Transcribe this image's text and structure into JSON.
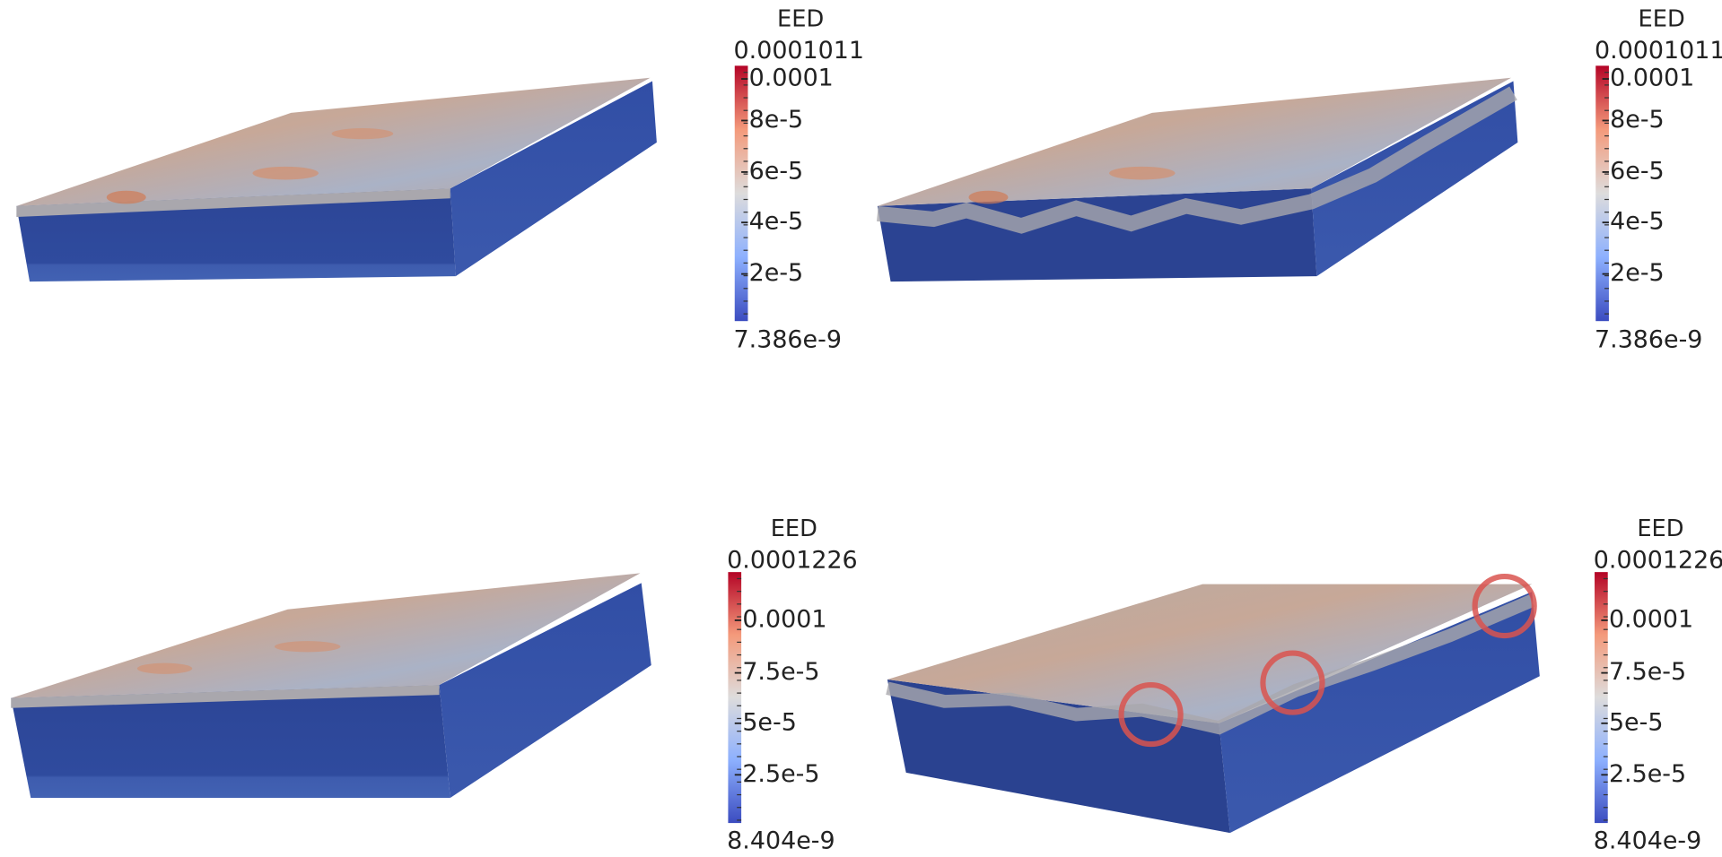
{
  "panels": [
    {
      "colorbar": {
        "title": "EED",
        "max": "0.0001011",
        "ticks": [
          "0.0001",
          "8e-5",
          "6e-5",
          "4e-5",
          "2e-5"
        ],
        "min": "7.386e-9"
      }
    },
    {
      "colorbar": {
        "title": "EED",
        "max": "0.0001011",
        "ticks": [
          "0.0001",
          "8e-5",
          "6e-5",
          "4e-5",
          "2e-5"
        ],
        "min": "7.386e-9"
      }
    },
    {
      "colorbar": {
        "title": "EED",
        "max": "0.0001226",
        "ticks": [
          "0.0001",
          "7.5e-5",
          "5e-5",
          "2.5e-5"
        ],
        "min": "8.404e-9"
      }
    },
    {
      "colorbar": {
        "title": "EED",
        "max": "0.0001226",
        "ticks": [
          "0.0001",
          "7.5e-5",
          "5e-5",
          "2.5e-5"
        ],
        "min": "8.404e-9"
      }
    }
  ]
}
